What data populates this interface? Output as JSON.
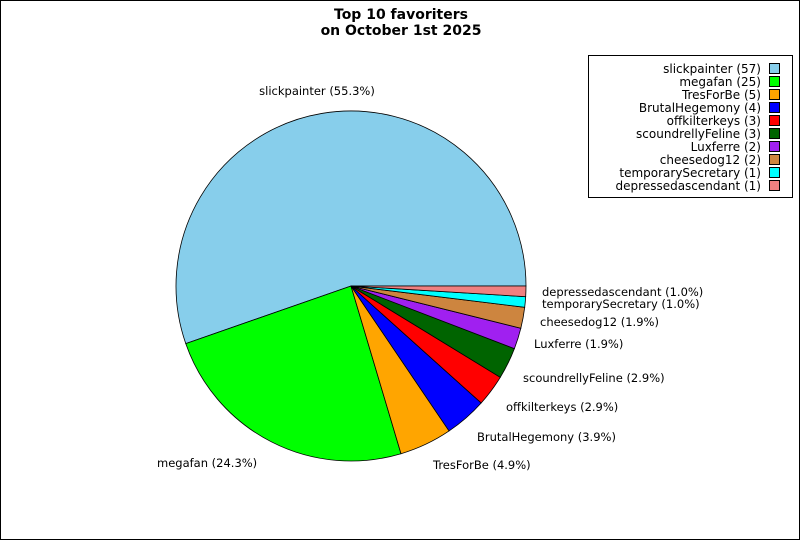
{
  "chart_data": {
    "type": "pie",
    "title": [
      "Top 10 favoriters",
      "on October 1st 2025"
    ],
    "slices": [
      {
        "label": "slickpainter",
        "value": 57,
        "percent": "55.3%",
        "color": "#87ceeb"
      },
      {
        "label": "megafan",
        "value": 25,
        "percent": "24.3%",
        "color": "#00ff00"
      },
      {
        "label": "TresForBe",
        "value": 5,
        "percent": "4.9%",
        "color": "#ffa500"
      },
      {
        "label": "BrutalHegemony",
        "value": 4,
        "percent": "3.9%",
        "color": "#0000ff"
      },
      {
        "label": "offkilterkeys",
        "value": 3,
        "percent": "2.9%",
        "color": "#ff0000"
      },
      {
        "label": "scoundrellyFeline",
        "value": 3,
        "percent": "2.9%",
        "color": "#006400"
      },
      {
        "label": "Luxferre",
        "value": 2,
        "percent": "1.9%",
        "color": "#a020f0"
      },
      {
        "label": "cheesedog12",
        "value": 2,
        "percent": "1.9%",
        "color": "#cd853f"
      },
      {
        "label": "temporarySecretary",
        "value": 1,
        "percent": "1.0%",
        "color": "#00ffff"
      },
      {
        "label": "depressedascendant",
        "value": 1,
        "percent": "1.0%",
        "color": "#f08080"
      }
    ],
    "legend_position": "top-right",
    "start_angle": "3 o'clock, counter-clockwise"
  }
}
